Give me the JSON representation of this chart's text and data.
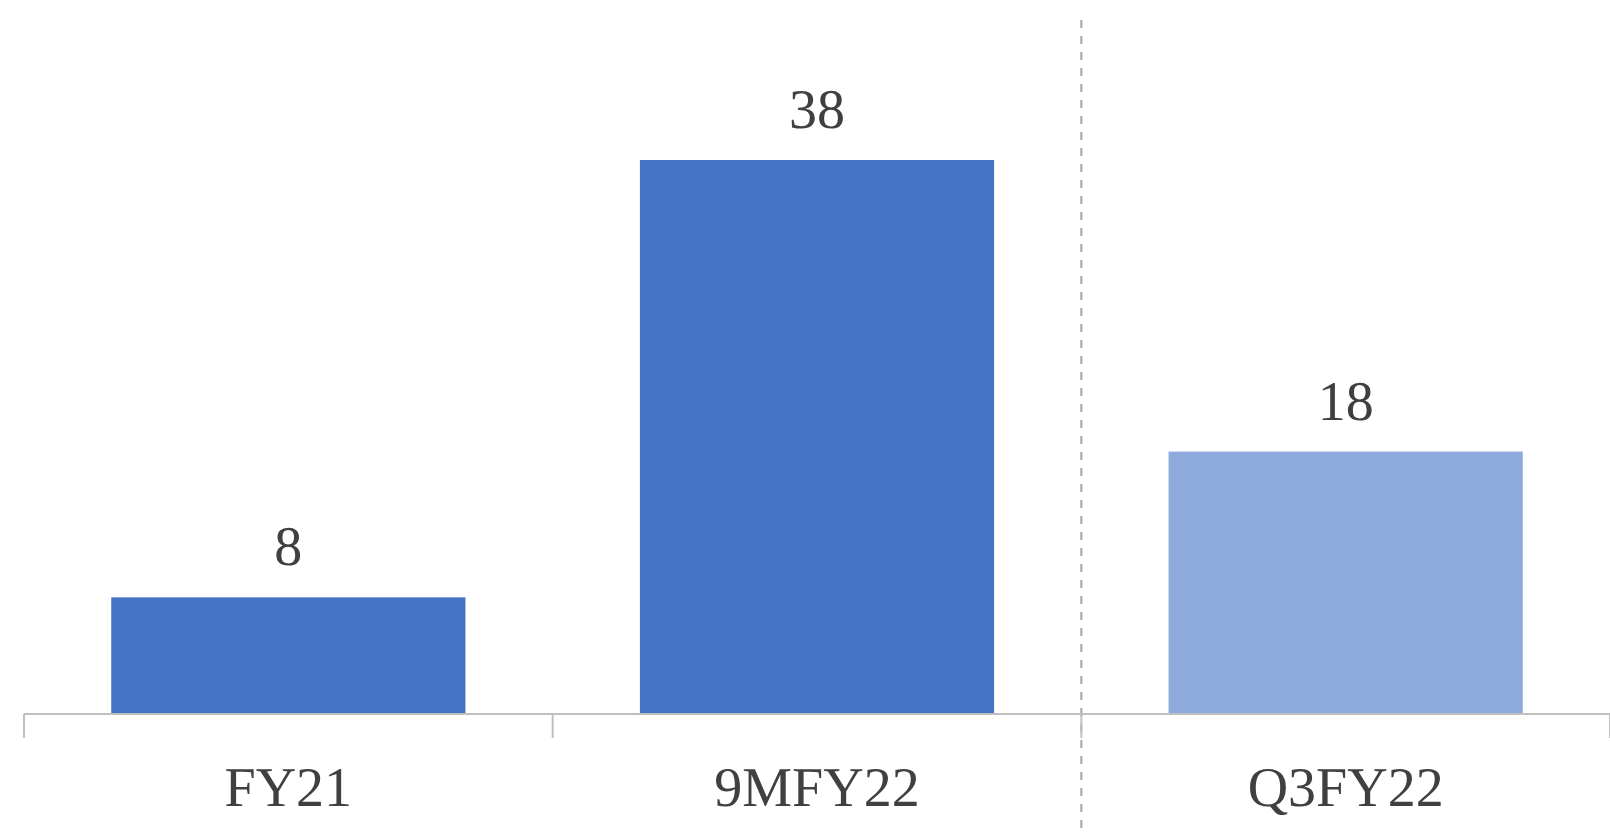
{
  "chart_data": {
    "type": "bar",
    "categories": [
      "FY21",
      "9MFY22",
      "Q3FY22"
    ],
    "values": [
      8,
      38,
      18
    ],
    "colors": [
      "#4472c4",
      "#4472c4",
      "#8faadc"
    ],
    "data_labels": true
  }
}
